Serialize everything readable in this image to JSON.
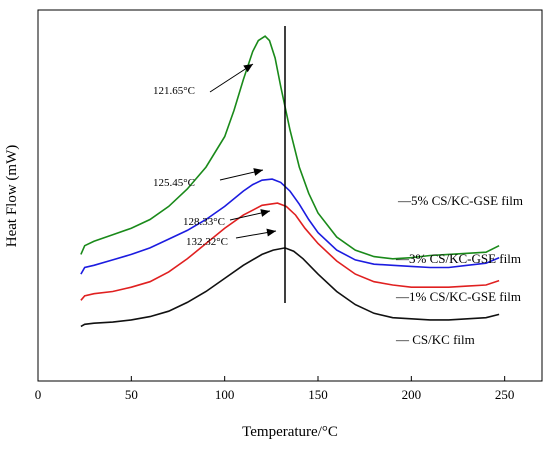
{
  "chart_data": {
    "type": "line",
    "xlabel": "Temperature/°C",
    "ylabel": "Heat Flow (mW)",
    "xlim": [
      0,
      270
    ],
    "x_ticks": [
      0,
      50,
      100,
      150,
      200,
      250
    ],
    "y_ticks_shown": false,
    "grid": false,
    "legend": "inline labels at right of each curve",
    "reference_line_x": 132.32,
    "series": [
      {
        "name": "—5% CS/KC-GSE film",
        "color": "#1a8a1a",
        "peak_label": "121.65°C",
        "peak_x": 121.65,
        "points": [
          [
            23,
            0.58
          ],
          [
            25,
            0.62
          ],
          [
            30,
            0.64
          ],
          [
            40,
            0.67
          ],
          [
            50,
            0.7
          ],
          [
            60,
            0.74
          ],
          [
            70,
            0.8
          ],
          [
            80,
            0.88
          ],
          [
            90,
            0.98
          ],
          [
            100,
            1.12
          ],
          [
            105,
            1.24
          ],
          [
            110,
            1.38
          ],
          [
            115,
            1.51
          ],
          [
            118,
            1.56
          ],
          [
            121.65,
            1.58
          ],
          [
            124,
            1.56
          ],
          [
            127,
            1.48
          ],
          [
            130,
            1.35
          ],
          [
            135,
            1.15
          ],
          [
            140,
            0.98
          ],
          [
            145,
            0.86
          ],
          [
            150,
            0.77
          ],
          [
            160,
            0.66
          ],
          [
            170,
            0.6
          ],
          [
            180,
            0.57
          ],
          [
            190,
            0.56
          ],
          [
            200,
            0.565
          ],
          [
            210,
            0.575
          ],
          [
            220,
            0.58
          ],
          [
            230,
            0.585
          ],
          [
            240,
            0.59
          ],
          [
            247,
            0.62
          ]
        ]
      },
      {
        "name": "—3% CS/KC-GSE film",
        "color": "#1c1ce0",
        "peak_label": "125.45°C",
        "peak_x": 125.45,
        "points": [
          [
            23,
            0.49
          ],
          [
            25,
            0.52
          ],
          [
            30,
            0.53
          ],
          [
            40,
            0.555
          ],
          [
            50,
            0.58
          ],
          [
            60,
            0.61
          ],
          [
            70,
            0.65
          ],
          [
            80,
            0.69
          ],
          [
            90,
            0.74
          ],
          [
            100,
            0.8
          ],
          [
            110,
            0.87
          ],
          [
            115,
            0.9
          ],
          [
            120,
            0.92
          ],
          [
            125.45,
            0.925
          ],
          [
            130,
            0.91
          ],
          [
            135,
            0.87
          ],
          [
            140,
            0.81
          ],
          [
            145,
            0.74
          ],
          [
            150,
            0.68
          ],
          [
            160,
            0.6
          ],
          [
            170,
            0.555
          ],
          [
            180,
            0.535
          ],
          [
            190,
            0.53
          ],
          [
            200,
            0.525
          ],
          [
            210,
            0.52
          ],
          [
            220,
            0.52
          ],
          [
            230,
            0.53
          ],
          [
            240,
            0.54
          ],
          [
            247,
            0.565
          ]
        ]
      },
      {
        "name": "—1% CS/KC-GSE film",
        "color": "#e02020",
        "peak_label": "128.33°C",
        "peak_x": 128.33,
        "points": [
          [
            23,
            0.37
          ],
          [
            25,
            0.39
          ],
          [
            30,
            0.4
          ],
          [
            40,
            0.41
          ],
          [
            50,
            0.43
          ],
          [
            60,
            0.455
          ],
          [
            70,
            0.5
          ],
          [
            80,
            0.56
          ],
          [
            90,
            0.63
          ],
          [
            100,
            0.7
          ],
          [
            110,
            0.76
          ],
          [
            120,
            0.805
          ],
          [
            128.33,
            0.815
          ],
          [
            133,
            0.8
          ],
          [
            138,
            0.76
          ],
          [
            143,
            0.7
          ],
          [
            150,
            0.63
          ],
          [
            160,
            0.55
          ],
          [
            170,
            0.49
          ],
          [
            180,
            0.455
          ],
          [
            190,
            0.44
          ],
          [
            200,
            0.43
          ],
          [
            210,
            0.43
          ],
          [
            220,
            0.43
          ],
          [
            230,
            0.435
          ],
          [
            240,
            0.44
          ],
          [
            247,
            0.46
          ]
        ]
      },
      {
        "name": "— CS/KC film",
        "color": "#111111",
        "peak_label": "132.32°C",
        "peak_x": 132.32,
        "points": [
          [
            23,
            0.25
          ],
          [
            25,
            0.26
          ],
          [
            30,
            0.265
          ],
          [
            40,
            0.27
          ],
          [
            50,
            0.28
          ],
          [
            60,
            0.295
          ],
          [
            70,
            0.32
          ],
          [
            80,
            0.36
          ],
          [
            90,
            0.41
          ],
          [
            100,
            0.47
          ],
          [
            110,
            0.53
          ],
          [
            120,
            0.58
          ],
          [
            126,
            0.6
          ],
          [
            132.32,
            0.61
          ],
          [
            137,
            0.595
          ],
          [
            142,
            0.56
          ],
          [
            150,
            0.49
          ],
          [
            160,
            0.41
          ],
          [
            170,
            0.35
          ],
          [
            180,
            0.31
          ],
          [
            190,
            0.29
          ],
          [
            200,
            0.285
          ],
          [
            210,
            0.28
          ],
          [
            220,
            0.28
          ],
          [
            230,
            0.285
          ],
          [
            240,
            0.29
          ],
          [
            247,
            0.305
          ]
        ]
      }
    ]
  }
}
